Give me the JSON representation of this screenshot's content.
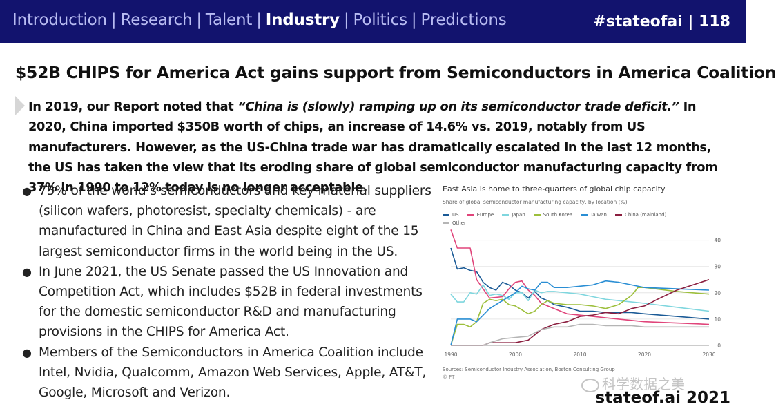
{
  "header": {
    "nav": [
      {
        "label": "Introduction",
        "active": false
      },
      {
        "label": "Research",
        "active": false
      },
      {
        "label": "Talent",
        "active": false
      },
      {
        "label": "Industry",
        "active": true
      },
      {
        "label": "Politics",
        "active": false
      },
      {
        "label": "Predictions",
        "active": false
      }
    ],
    "separator": "|",
    "page_ref": "#stateofai | 118"
  },
  "slide": {
    "title": "$52B CHIPS for America Act gains support from Semiconductors in America Coalition",
    "intro_pre": "In 2019, our Report noted that ",
    "intro_quote": "“China is (slowly) ramping up on its semiconductor trade deficit.”",
    "intro_post": " In 2020, China imported $350B worth of chips, an increase of 14.6% vs. 2019, notably from US manufacturers. However, as the US-China trade war has dramatically escalated in the last 12 months, the US has taken the view that its eroding share of global semiconductor manufacturing capacity from 37% in 1990 to 12% today is no longer acceptable.",
    "bullets": [
      "75% of the world’s semiconductors and key material suppliers (silicon wafers, photoresist, specialty chemicals) - are manufactured in China and East Asia despite eight of the 15 largest semiconductor firms in the world being in the US.",
      "In June 2021, the US Senate passed the US Innovation and Competition Act, which includes $52B in federal investments for the domestic semiconductor R&D and manufacturing provisions in the CHIPS for America Act.",
      "Members of the Semiconductors in America Coalition include Intel, Nvidia, Qualcomm, Amazon Web Services, Apple, AT&T, Google, Microsoft and Verizon."
    ],
    "bullet_symbol": "●"
  },
  "chart_data": {
    "type": "line",
    "title": "East Asia is home to three-quarters of global chip capacity",
    "subtitle": "Share of global semiconductor manufacturing capacity, by location (%)",
    "xlabel": "",
    "ylabel": "",
    "x_ticks": [
      1990,
      2000,
      2010,
      2020,
      2030
    ],
    "y_ticks": [
      0,
      10,
      20,
      30,
      40
    ],
    "xlim": [
      1990,
      2030
    ],
    "ylim": [
      0,
      42
    ],
    "grid": true,
    "y_axis_side": "right",
    "legend_position": "top-left",
    "series": [
      {
        "name": "US",
        "color": "#1a5a96",
        "points": [
          [
            1990,
            37
          ],
          [
            1991,
            29
          ],
          [
            1992,
            29.5
          ],
          [
            1993,
            28.5
          ],
          [
            1994,
            28
          ],
          [
            1995,
            24
          ],
          [
            1996,
            22
          ],
          [
            1997,
            21
          ],
          [
            1998,
            24
          ],
          [
            1999,
            23
          ],
          [
            2000,
            21
          ],
          [
            2001,
            20
          ],
          [
            2002,
            18
          ],
          [
            2003,
            20.5
          ],
          [
            2004,
            18
          ],
          [
            2005,
            17
          ],
          [
            2006,
            15.5
          ],
          [
            2008,
            14.5
          ],
          [
            2010,
            13
          ],
          [
            2012,
            13
          ],
          [
            2014,
            12.5
          ],
          [
            2016,
            12.5
          ],
          [
            2018,
            12.5
          ],
          [
            2020,
            12
          ],
          [
            2025,
            11
          ],
          [
            2030,
            10
          ]
        ]
      },
      {
        "name": "Europe",
        "color": "#e0447a",
        "points": [
          [
            1990,
            44
          ],
          [
            1991,
            37
          ],
          [
            1993,
            37
          ],
          [
            1994,
            25
          ],
          [
            1996,
            18
          ],
          [
            1998,
            18.5
          ],
          [
            1999,
            21.5
          ],
          [
            2000,
            24
          ],
          [
            2001,
            24.5
          ],
          [
            2002,
            21
          ],
          [
            2003,
            19
          ],
          [
            2004,
            16
          ],
          [
            2006,
            14
          ],
          [
            2008,
            12
          ],
          [
            2010,
            11.5
          ],
          [
            2012,
            11
          ],
          [
            2014,
            10.5
          ],
          [
            2016,
            10
          ],
          [
            2018,
            9.5
          ],
          [
            2020,
            9
          ],
          [
            2025,
            8.5
          ],
          [
            2030,
            8
          ]
        ]
      },
      {
        "name": "Japan",
        "color": "#7fd6de",
        "points": [
          [
            1990,
            19.5
          ],
          [
            1991,
            16.5
          ],
          [
            1992,
            16.5
          ],
          [
            1993,
            20
          ],
          [
            1994,
            19.5
          ],
          [
            1995,
            23
          ],
          [
            1996,
            19
          ],
          [
            1997,
            19.5
          ],
          [
            1998,
            19
          ],
          [
            1999,
            17.5
          ],
          [
            2000,
            20
          ],
          [
            2001,
            20
          ],
          [
            2002,
            17
          ],
          [
            2003,
            21
          ],
          [
            2004,
            20
          ],
          [
            2005,
            20.5
          ],
          [
            2006,
            20.5
          ],
          [
            2008,
            20
          ],
          [
            2010,
            19.5
          ],
          [
            2012,
            18.5
          ],
          [
            2014,
            17.5
          ],
          [
            2016,
            17
          ],
          [
            2018,
            16.5
          ],
          [
            2020,
            16
          ],
          [
            2025,
            14.5
          ],
          [
            2030,
            13
          ]
        ]
      },
      {
        "name": "South Korea",
        "color": "#9dbf3c",
        "points": [
          [
            1990,
            0
          ],
          [
            1991,
            8
          ],
          [
            1992,
            8
          ],
          [
            1993,
            7
          ],
          [
            1994,
            9
          ],
          [
            1995,
            16
          ],
          [
            1996,
            17.5
          ],
          [
            1997,
            17
          ],
          [
            1998,
            17.5
          ],
          [
            1999,
            15.5
          ],
          [
            2000,
            15
          ],
          [
            2001,
            13.5
          ],
          [
            2002,
            12
          ],
          [
            2003,
            13
          ],
          [
            2004,
            15.5
          ],
          [
            2005,
            17
          ],
          [
            2006,
            16
          ],
          [
            2008,
            15.5
          ],
          [
            2010,
            15.5
          ],
          [
            2012,
            15
          ],
          [
            2014,
            14
          ],
          [
            2016,
            15.5
          ],
          [
            2018,
            19
          ],
          [
            2019,
            22
          ],
          [
            2020,
            22
          ],
          [
            2025,
            20.5
          ],
          [
            2030,
            19.5
          ]
        ]
      },
      {
        "name": "Taiwan",
        "color": "#2a8ed4",
        "points": [
          [
            1990,
            0
          ],
          [
            1991,
            10
          ],
          [
            1993,
            10
          ],
          [
            1994,
            9
          ],
          [
            1996,
            14
          ],
          [
            1998,
            17
          ],
          [
            2000,
            20
          ],
          [
            2001,
            22.5
          ],
          [
            2002,
            21.5
          ],
          [
            2003,
            21
          ],
          [
            2004,
            24
          ],
          [
            2005,
            24
          ],
          [
            2006,
            22
          ],
          [
            2008,
            22
          ],
          [
            2010,
            22.5
          ],
          [
            2012,
            23
          ],
          [
            2014,
            24.5
          ],
          [
            2016,
            24
          ],
          [
            2018,
            23
          ],
          [
            2020,
            22
          ],
          [
            2025,
            21.5
          ],
          [
            2030,
            21
          ]
        ]
      },
      {
        "name": "China (mainland)",
        "color": "#8b1e3f",
        "points": [
          [
            1990,
            0
          ],
          [
            1995,
            0
          ],
          [
            1996,
            1
          ],
          [
            1998,
            1
          ],
          [
            2000,
            1
          ],
          [
            2002,
            2
          ],
          [
            2003,
            4
          ],
          [
            2004,
            6
          ],
          [
            2005,
            7
          ],
          [
            2006,
            8
          ],
          [
            2008,
            9
          ],
          [
            2010,
            11
          ],
          [
            2012,
            11.5
          ],
          [
            2014,
            12.5
          ],
          [
            2016,
            12
          ],
          [
            2018,
            14
          ],
          [
            2020,
            15
          ],
          [
            2022,
            17.5
          ],
          [
            2025,
            21
          ],
          [
            2030,
            25
          ]
        ]
      },
      {
        "name": "Other",
        "color": "#b5b5b5",
        "points": [
          [
            1990,
            0
          ],
          [
            1995,
            0
          ],
          [
            1996,
            1
          ],
          [
            1998,
            2.5
          ],
          [
            2000,
            3
          ],
          [
            2002,
            3.5
          ],
          [
            2004,
            6
          ],
          [
            2006,
            7
          ],
          [
            2008,
            7
          ],
          [
            2010,
            8
          ],
          [
            2012,
            8
          ],
          [
            2014,
            7.5
          ],
          [
            2016,
            7.5
          ],
          [
            2018,
            7.5
          ],
          [
            2020,
            7
          ],
          [
            2025,
            7
          ],
          [
            2030,
            7
          ]
        ]
      }
    ],
    "source": "Sources: Semiconductor Industry Association, Boston Consulting Group",
    "publisher_mark": "© FT"
  },
  "watermark": "科学数据之美",
  "footer": {
    "brand": "stateof.ai 2021"
  }
}
